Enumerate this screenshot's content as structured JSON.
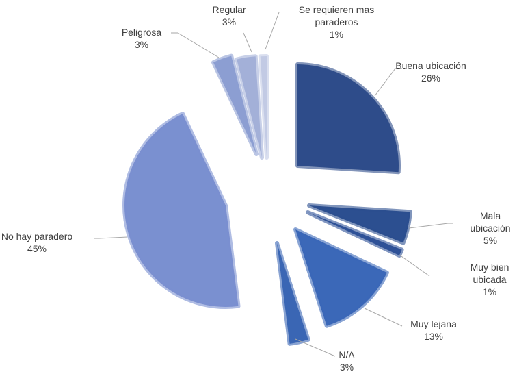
{
  "chart_data": {
    "type": "pie",
    "categories": [
      "Buena ubicación",
      "Mala ubicación",
      "Muy bien ubicada",
      "Muy lejana",
      "N/A",
      "No hay paradero",
      "Peligrosa",
      "Regular",
      "Se requieren mas paraderos"
    ],
    "values": [
      26,
      5,
      1,
      13,
      3,
      45,
      3,
      3,
      1
    ],
    "value_labels": [
      "26%",
      "5%",
      "1%",
      "13%",
      "3%",
      "45%",
      "3%",
      "3%",
      "1%"
    ],
    "colors": [
      "#2e4c8a",
      "#2c4f90",
      "#2f5297",
      "#3b68b8",
      "#3a66b4",
      "#7a90d0",
      "#8c9ed2",
      "#a3b0d8",
      "#c2cae4"
    ]
  }
}
